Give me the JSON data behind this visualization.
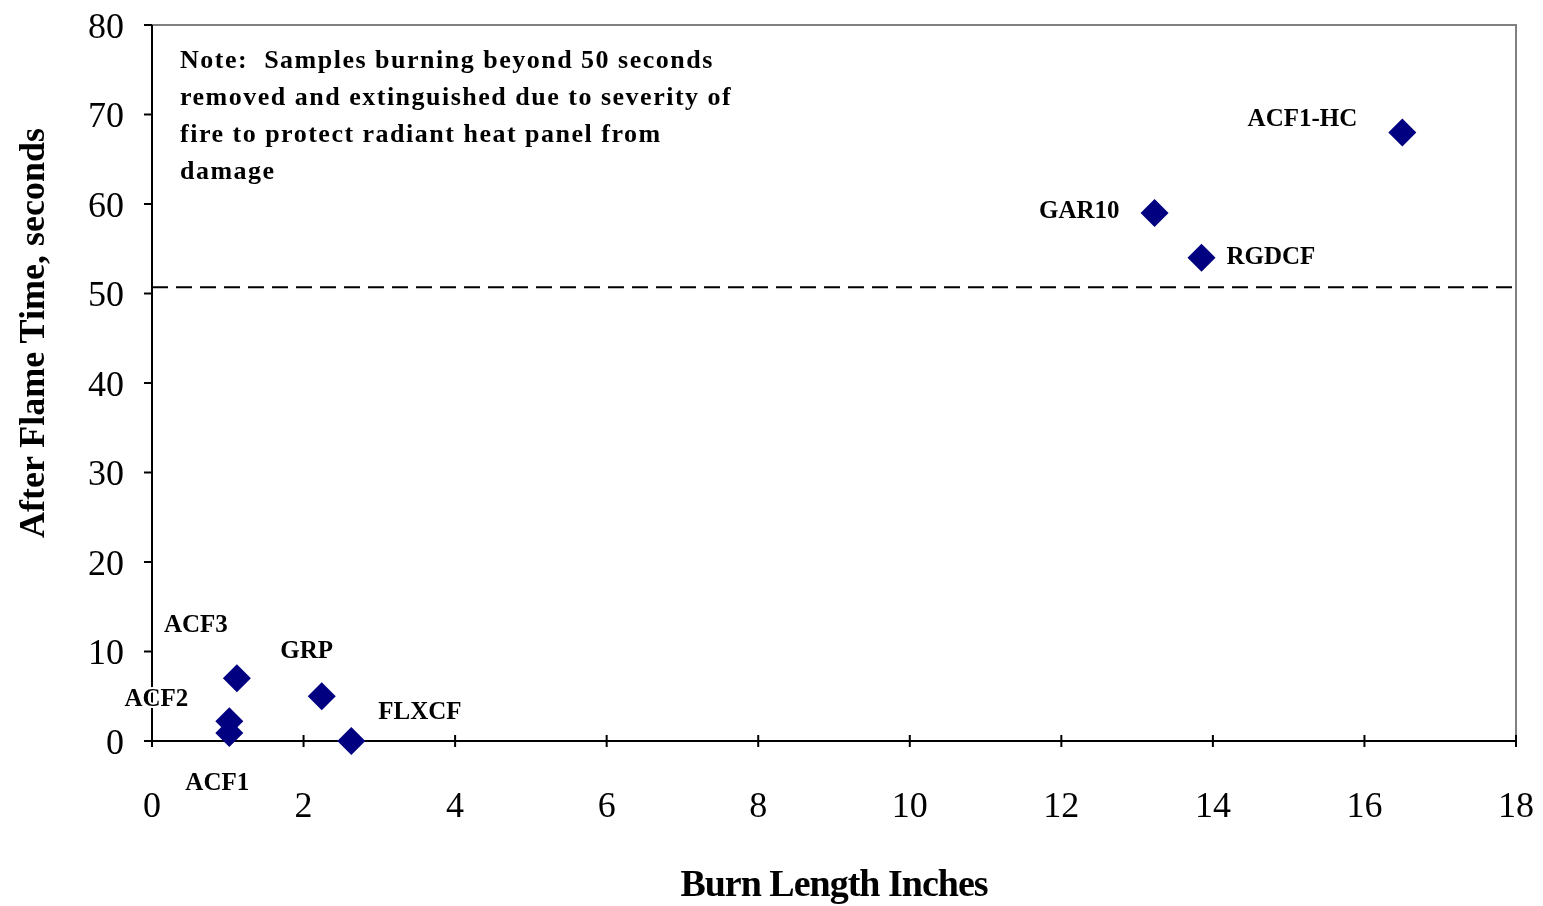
{
  "chart_data": {
    "type": "scatter",
    "xlabel": "Burn Length  Inches",
    "ylabel": "After Flame Time, seconds",
    "xlim": [
      0,
      18
    ],
    "ylim": [
      0,
      80
    ],
    "xticks": [
      0,
      2,
      4,
      6,
      8,
      10,
      12,
      14,
      16,
      18
    ],
    "yticks": [
      0,
      10,
      20,
      30,
      40,
      50,
      60,
      70,
      80
    ],
    "grid": false,
    "marker": "diamond",
    "series": [
      {
        "color": "#000080",
        "x": [
          16.5,
          13.23,
          13.85,
          1.12,
          2.24,
          1.02,
          1.02,
          2.63
        ],
        "values": [
          68,
          59,
          54,
          7,
          5,
          2.2,
          0.9,
          0
        ]
      }
    ],
    "ref_lines": [
      {
        "axis": "y",
        "value": 50.7,
        "line_style": "dashed",
        "color": "#000000"
      }
    ],
    "annotations": [
      "Note:  Samples burning beyond 50 seconds removed and extinguished due to severity of fire to protect radiant heat panel from damage",
      {
        "text": "ACF1-HC",
        "x": 16.5,
        "y": 68
      },
      {
        "text": "GAR10",
        "x": 13.23,
        "y": 59
      },
      {
        "text": "RGDCF",
        "x": 13.85,
        "y": 54
      },
      {
        "text": "ACF3",
        "x": 1.12,
        "y": 7
      },
      {
        "text": "GRP",
        "x": 2.24,
        "y": 5
      },
      {
        "text": "ACF2",
        "x": 1.02,
        "y": 2.2
      },
      {
        "text": "ACF1",
        "x": 1.02,
        "y": 0.9
      },
      {
        "text": "FLXCF",
        "x": 2.63,
        "y": 0
      }
    ]
  }
}
